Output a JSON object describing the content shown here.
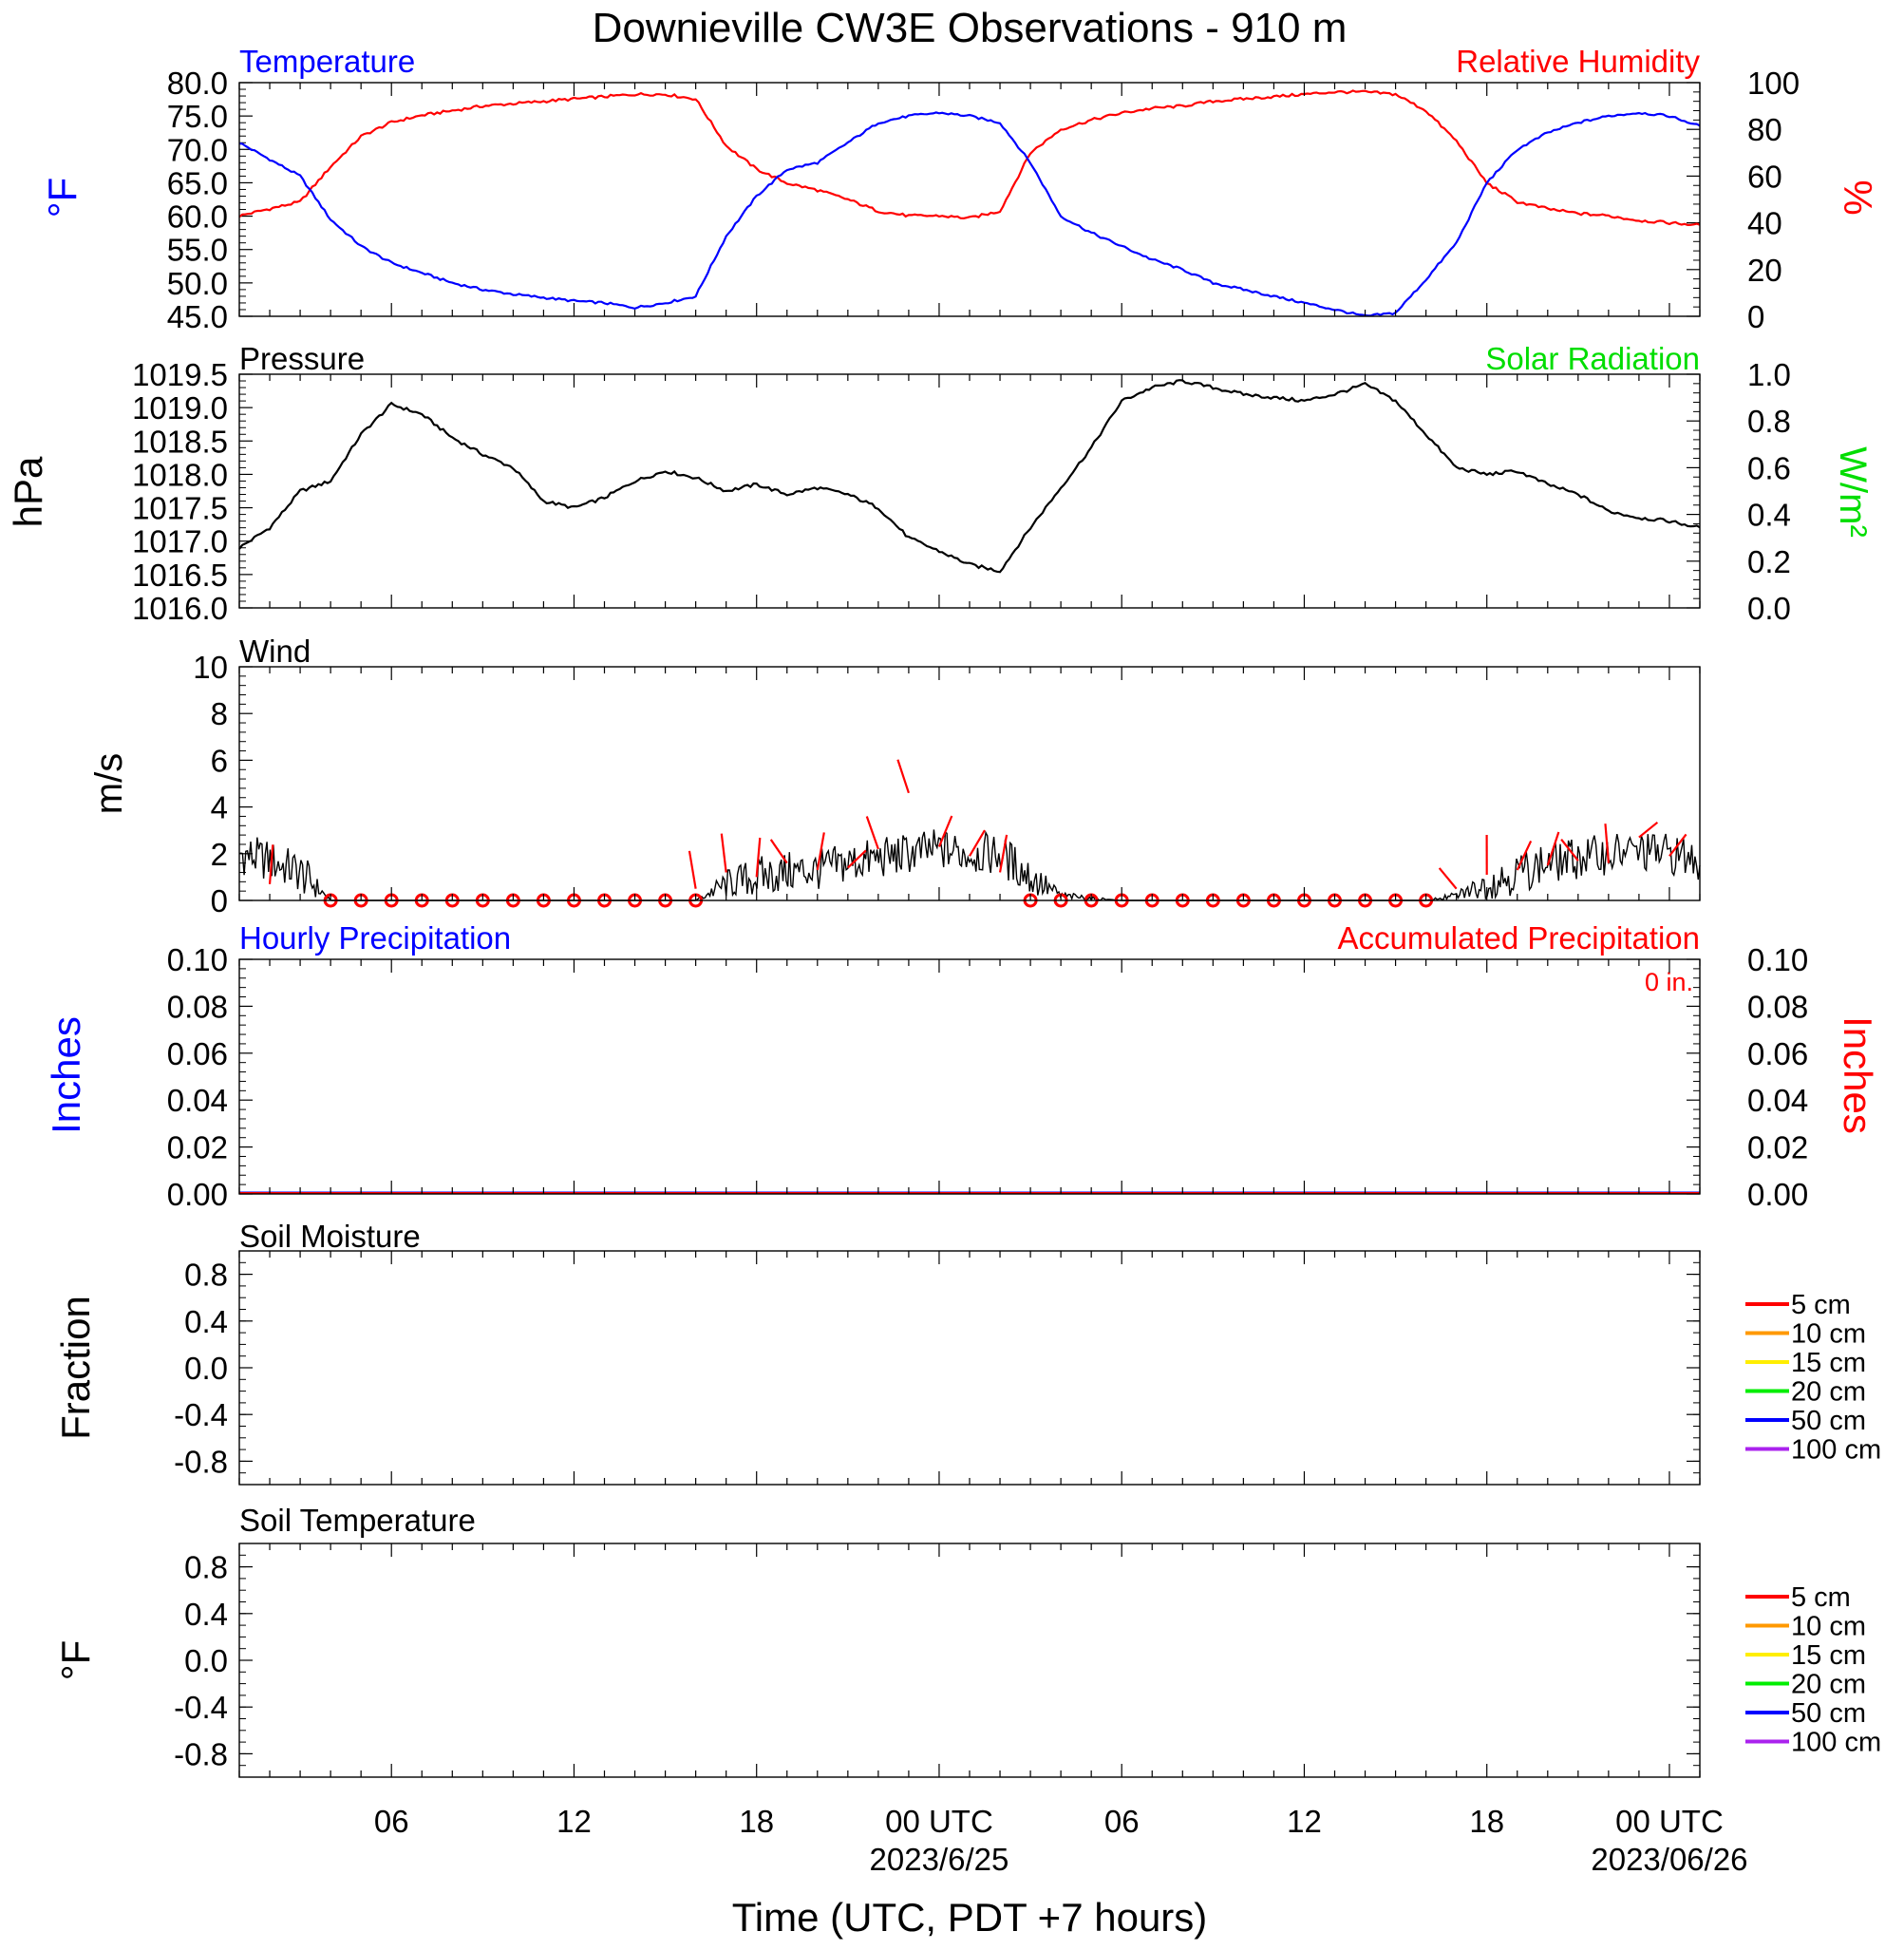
{
  "title": "Downieville CW3E Observations - 910 m",
  "x_axis": {
    "label": "Time (UTC, PDT +7 hours)",
    "range_hours": [
      0,
      48
    ],
    "ticks": [
      {
        "h": 5,
        "label": "06"
      },
      {
        "h": 11,
        "label": "12"
      },
      {
        "h": 17,
        "label": "18"
      },
      {
        "h": 23,
        "label": "00 UTC",
        "date": "2023/6/25"
      },
      {
        "h": 29,
        "label": "06"
      },
      {
        "h": 35,
        "label": "12"
      },
      {
        "h": 41,
        "label": "18"
      },
      {
        "h": 47,
        "label": "00 UTC",
        "date": "2023/06/26"
      }
    ]
  },
  "colors": {
    "temperature": "#0000ff",
    "humidity": "#ff0000",
    "pressure": "#000000",
    "solar": "#00dd00",
    "wind_speed": "#000000",
    "wind_barb": "#ff0000",
    "precip_hourly": "#0000ff",
    "precip_accum": "#ff0000"
  },
  "panels": {
    "temp": {
      "left_title": "Temperature",
      "right_title": "Relative Humidity",
      "left_unit": "°F",
      "right_unit": "%",
      "left_ticks": [
        "80.0",
        "75.0",
        "70.0",
        "65.0",
        "60.0",
        "55.0",
        "50.0",
        "45.0"
      ],
      "right_ticks": [
        "100",
        "80",
        "60",
        "40",
        "20",
        "0"
      ]
    },
    "pressure": {
      "left_title": "Pressure",
      "right_title": "Solar Radiation",
      "left_unit": "hPa",
      "right_unit": "W/m²",
      "left_ticks": [
        "1019.5",
        "1019.0",
        "1018.5",
        "1018.0",
        "1017.5",
        "1017.0",
        "1016.5",
        "1016.0"
      ],
      "right_ticks": [
        "1.0",
        "0.8",
        "0.6",
        "0.4",
        "0.2",
        "0.0"
      ]
    },
    "wind": {
      "left_title": "Wind",
      "left_unit": "m/s",
      "left_ticks": [
        "10",
        "8",
        "6",
        "4",
        "2",
        "0"
      ]
    },
    "precip": {
      "left_title": "Hourly Precipitation",
      "right_title": "Accumulated Precipitation",
      "total_label": "0 in.",
      "left_unit": "Inches",
      "right_unit": "Inches",
      "left_ticks": [
        "0.10",
        "0.08",
        "0.06",
        "0.04",
        "0.02",
        "0.00"
      ],
      "right_ticks": [
        "0.10",
        "0.08",
        "0.06",
        "0.04",
        "0.02",
        "0.00"
      ]
    },
    "soil_moisture": {
      "left_title": "Soil Moisture",
      "left_unit": "Fraction",
      "left_ticks": [
        "0.8",
        "0.4",
        "0.0",
        "-0.4",
        "-0.8"
      ]
    },
    "soil_temp": {
      "left_title": "Soil Temperature",
      "left_unit": "°F",
      "left_ticks": [
        "0.8",
        "0.4",
        "0.0",
        "-0.4",
        "-0.8"
      ]
    }
  },
  "soil_legend": [
    {
      "label": "5 cm",
      "color": "#ff0000"
    },
    {
      "label": "10 cm",
      "color": "#ff9900"
    },
    {
      "label": "15 cm",
      "color": "#ffee00"
    },
    {
      "label": "20 cm",
      "color": "#00ee00"
    },
    {
      "label": "50 cm",
      "color": "#0000ff"
    },
    {
      "label": "100 cm",
      "color": "#aa22ee"
    }
  ],
  "chart_data": [
    {
      "type": "line",
      "panel": "temp",
      "name": "Temperature",
      "unit": "°F",
      "ylim": [
        45,
        80
      ],
      "x_hours": [
        0,
        1,
        2,
        3,
        4,
        5,
        6,
        7,
        8,
        9,
        10,
        11,
        12,
        13,
        14,
        15,
        16,
        17,
        18,
        19,
        20,
        21,
        22,
        23,
        24,
        25,
        26,
        27,
        28,
        29,
        30,
        31,
        32,
        33,
        34,
        35,
        36,
        37,
        38,
        39,
        40,
        41,
        42,
        43,
        44,
        45,
        46,
        47,
        48
      ],
      "values": [
        71.0,
        68.5,
        66.0,
        59.5,
        55.5,
        53.0,
        51.5,
        50.0,
        49.0,
        48.3,
        47.8,
        47.3,
        47.0,
        46.3,
        47.0,
        48.0,
        57.0,
        63.0,
        67.0,
        68.0,
        71.0,
        74.0,
        75.0,
        75.5,
        75.0,
        74.0,
        68.0,
        60.0,
        57.5,
        55.5,
        53.5,
        52.0,
        50.0,
        49.0,
        48.0,
        47.0,
        46.0,
        45.0,
        45.5,
        50.5,
        56.0,
        65.0,
        70.0,
        72.5,
        74.0,
        75.0,
        75.5,
        75.0,
        73.5
      ]
    },
    {
      "type": "line",
      "panel": "temp",
      "name": "Relative Humidity",
      "unit": "%",
      "ylim": [
        0,
        100
      ],
      "x_hours": [
        0,
        1,
        2,
        3,
        4,
        5,
        6,
        7,
        8,
        9,
        10,
        11,
        12,
        13,
        14,
        15,
        16,
        17,
        18,
        19,
        20,
        21,
        22,
        23,
        24,
        25,
        26,
        27,
        28,
        29,
        30,
        31,
        32,
        33,
        34,
        35,
        36,
        37,
        38,
        39,
        40,
        41,
        42,
        43,
        44,
        45,
        46,
        47,
        48
      ],
      "values": [
        43,
        46,
        49,
        64,
        77,
        83,
        86,
        88,
        90,
        91,
        92,
        93,
        94,
        95,
        95,
        93,
        73,
        63,
        57,
        54,
        50,
        45,
        43,
        43,
        42,
        45,
        70,
        80,
        84,
        87,
        89,
        90,
        92,
        93,
        94,
        95,
        96,
        96,
        95,
        88,
        75,
        57,
        49,
        46,
        44,
        43,
        41,
        40,
        39
      ]
    },
    {
      "type": "line",
      "panel": "pressure",
      "name": "Pressure",
      "unit": "hPa",
      "ylim": [
        1016.0,
        1019.5
      ],
      "x_hours": [
        0,
        1,
        2,
        3,
        4,
        5,
        6,
        7,
        8,
        9,
        10,
        11,
        12,
        13,
        14,
        15,
        16,
        17,
        18,
        19,
        20,
        21,
        22,
        23,
        24,
        25,
        26,
        27,
        28,
        29,
        30,
        31,
        32,
        33,
        34,
        35,
        36,
        37,
        38,
        39,
        40,
        41,
        42,
        43,
        44,
        45,
        46,
        47,
        48
      ],
      "values": [
        1016.9,
        1017.2,
        1017.75,
        1017.9,
        1018.6,
        1019.05,
        1018.9,
        1018.55,
        1018.3,
        1018.1,
        1017.6,
        1017.5,
        1017.65,
        1017.9,
        1018.05,
        1017.95,
        1017.75,
        1017.85,
        1017.7,
        1017.8,
        1017.7,
        1017.5,
        1017.05,
        1016.85,
        1016.65,
        1016.55,
        1017.2,
        1017.8,
        1018.4,
        1019.1,
        1019.3,
        1019.4,
        1019.3,
        1019.2,
        1019.15,
        1019.1,
        1019.2,
        1019.35,
        1019.1,
        1018.6,
        1018.1,
        1018.0,
        1018.05,
        1017.85,
        1017.7,
        1017.45,
        1017.35,
        1017.3,
        1017.2
      ]
    },
    {
      "type": "line",
      "panel": "pressure",
      "name": "Solar Radiation",
      "unit": "W/m²",
      "ylim": [
        0,
        1
      ],
      "values": []
    },
    {
      "type": "line",
      "panel": "wind",
      "name": "Wind speed",
      "unit": "m/s",
      "ylim": [
        0,
        10
      ],
      "x_hours": [
        0,
        1,
        2,
        3,
        4,
        5,
        6,
        7,
        8,
        9,
        10,
        11,
        12,
        13,
        14,
        15,
        16,
        17,
        18,
        19,
        20,
        21,
        22,
        23,
        24,
        25,
        26,
        27,
        28,
        29,
        30,
        31,
        32,
        33,
        34,
        35,
        36,
        37,
        38,
        39,
        40,
        41,
        42,
        43,
        44,
        45,
        46,
        47,
        48
      ],
      "values": [
        2.0,
        1.7,
        1.2,
        0.0,
        0.0,
        0.0,
        0.0,
        0.0,
        0.0,
        0.0,
        0.0,
        0.0,
        0.0,
        0.0,
        0.0,
        0.0,
        0.7,
        1.0,
        1.2,
        1.3,
        1.6,
        1.8,
        2.0,
        2.2,
        2.0,
        2.0,
        1.0,
        0.2,
        0.1,
        0.0,
        0.0,
        0.0,
        0.0,
        0.0,
        0.0,
        0.0,
        0.0,
        0.0,
        0.0,
        0.0,
        0.2,
        0.7,
        1.2,
        1.6,
        1.8,
        2.0,
        2.1,
        2.0,
        1.7
      ]
    },
    {
      "type": "scatter",
      "panel": "wind",
      "name": "Wind barbs (calm circles)",
      "calm_hours": [
        3,
        4,
        5,
        6,
        7,
        8,
        9,
        10,
        11,
        12,
        13,
        14,
        15,
        26,
        27,
        28,
        29,
        30,
        31,
        32,
        33,
        34,
        35,
        36,
        37,
        38,
        39
      ],
      "barb_hours": [
        1,
        15,
        16,
        17,
        18,
        19,
        20,
        21,
        22,
        23,
        24,
        25,
        40,
        41,
        42,
        43,
        44,
        45,
        46,
        47
      ],
      "barb_speeds": [
        0.7,
        0.5,
        1.2,
        1.0,
        1.6,
        1.3,
        1.4,
        2.2,
        4.6,
        2.3,
        1.9,
        1.2,
        0.5,
        1.1,
        1.3,
        1.5,
        1.7,
        1.6,
        2.7,
        1.9
      ]
    },
    {
      "type": "line",
      "panel": "precip",
      "name": "Hourly Precipitation",
      "unit": "Inches",
      "ylim": [
        0,
        0.1
      ],
      "values": [
        0
      ]
    },
    {
      "type": "line",
      "panel": "precip",
      "name": "Accumulated Precipitation",
      "unit": "Inches",
      "ylim": [
        0,
        0.1
      ],
      "values": [
        0
      ]
    },
    {
      "type": "line",
      "panel": "soil_moisture",
      "name": "Soil Moisture",
      "unit": "Fraction",
      "ylim": [
        -1,
        1
      ],
      "values": []
    },
    {
      "type": "line",
      "panel": "soil_temp",
      "name": "Soil Temperature",
      "unit": "°F",
      "ylim": [
        -1,
        1
      ],
      "values": []
    }
  ]
}
